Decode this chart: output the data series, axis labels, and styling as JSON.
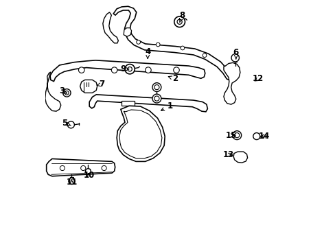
{
  "background_color": "#ffffff",
  "line_color": "#000000",
  "text_color": "#000000",
  "label_defs": [
    [
      1,
      0.508,
      0.43,
      0.462,
      0.452
    ],
    [
      2,
      0.53,
      0.318,
      0.492,
      0.305
    ],
    [
      3,
      0.068,
      0.368,
      0.092,
      0.378
    ],
    [
      4,
      0.418,
      0.208,
      0.418,
      0.238
    ],
    [
      5,
      0.078,
      0.498,
      0.105,
      0.508
    ],
    [
      6,
      0.778,
      0.21,
      0.778,
      0.238
    ],
    [
      7,
      0.232,
      0.34,
      0.208,
      0.345
    ],
    [
      8,
      0.558,
      0.06,
      0.548,
      0.088
    ],
    [
      9,
      0.318,
      0.278,
      0.345,
      0.278
    ],
    [
      10,
      0.178,
      0.712,
      0.175,
      0.692
    ],
    [
      11,
      0.108,
      0.738,
      0.108,
      0.72
    ],
    [
      12,
      0.868,
      0.318,
      0.845,
      0.332
    ],
    [
      13,
      0.748,
      0.628,
      0.77,
      0.632
    ],
    [
      14,
      0.892,
      0.552,
      0.868,
      0.552
    ],
    [
      15,
      0.758,
      0.548,
      0.782,
      0.548
    ]
  ]
}
